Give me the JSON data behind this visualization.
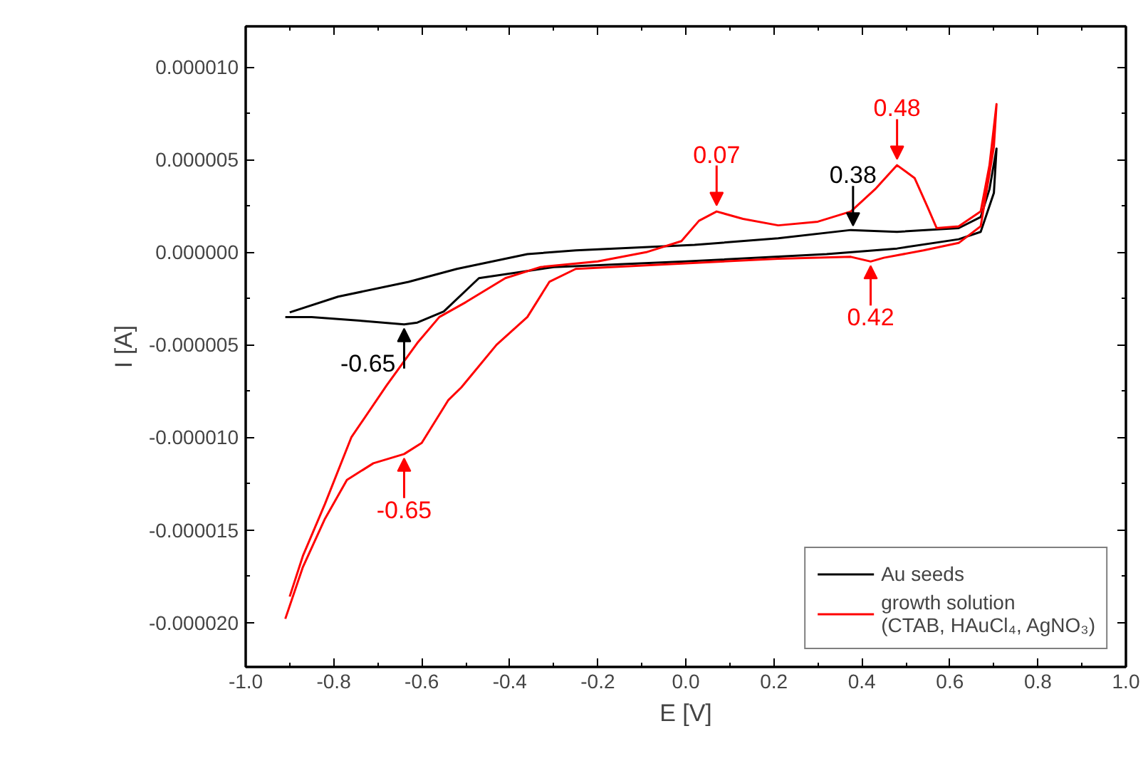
{
  "chart_data": {
    "type": "line",
    "xlabel": "E [V]",
    "ylabel": "I [A]",
    "xlim": [
      -1.0,
      1.0
    ],
    "ylim": [
      -2.24e-05,
      1.22e-05
    ],
    "xticks": [
      {
        "value": -1.0,
        "label": "-1.0"
      },
      {
        "value": -0.8,
        "label": "-0.8"
      },
      {
        "value": -0.6,
        "label": "-0.6"
      },
      {
        "value": -0.4,
        "label": "-0.4"
      },
      {
        "value": -0.2,
        "label": "-0.2"
      },
      {
        "value": 0.0,
        "label": "0.0"
      },
      {
        "value": 0.2,
        "label": "0.2"
      },
      {
        "value": 0.4,
        "label": "0.4"
      },
      {
        "value": 0.6,
        "label": "0.6"
      },
      {
        "value": 0.8,
        "label": "0.8"
      },
      {
        "value": 1.0,
        "label": "1.0"
      }
    ],
    "yticks": [
      {
        "value": -2e-05,
        "label": "-0.000020"
      },
      {
        "value": -1.5e-05,
        "label": "-0.000015"
      },
      {
        "value": -1e-05,
        "label": "-0.000010"
      },
      {
        "value": -5e-06,
        "label": "-0.000005"
      },
      {
        "value": 0,
        "label": "0.000000"
      },
      {
        "value": 5e-06,
        "label": "0.000005"
      },
      {
        "value": 1e-05,
        "label": "0.000010"
      }
    ],
    "grid": false,
    "legend": "bottom right",
    "marker": "none",
    "line_style": "solid",
    "series": [
      {
        "name": "Au seeds",
        "color": "#000000",
        "x": [
          -0.9,
          -0.79,
          -0.63,
          -0.52,
          -0.36,
          -0.25,
          0.02,
          0.21,
          0.375,
          0.48,
          0.62,
          0.67,
          0.69,
          0.706,
          0.7,
          0.67,
          0.62,
          0.48,
          0.32,
          0.0,
          -0.3,
          -0.47,
          -0.55,
          -0.61,
          -0.64,
          -0.74,
          -0.85,
          -0.91
        ],
        "values": [
          -3.25e-06,
          -2.4e-06,
          -1.6e-06,
          -9e-07,
          -1e-07,
          1e-07,
          4e-07,
          7.5e-07,
          1.2e-06,
          1.1e-06,
          1.3e-06,
          1.9e-06,
          3.4e-06,
          5.6e-06,
          3.2e-06,
          1.1e-06,
          7e-07,
          2e-07,
          -1e-07,
          -5e-07,
          -8e-07,
          -1.4e-06,
          -3.2e-06,
          -3.8e-06,
          -3.9e-06,
          -3.7e-06,
          -3.5e-06,
          -3.5e-06
        ]
      },
      {
        "name": "growth solution\n(CTAB, HAuCl₄, AgNO₃)",
        "color": "#ff0000",
        "x": [
          -0.9,
          -0.87,
          -0.82,
          -0.76,
          -0.68,
          -0.61,
          -0.56,
          -0.5,
          -0.41,
          -0.33,
          -0.2,
          -0.09,
          -0.01,
          0.03,
          0.07,
          0.13,
          0.21,
          0.3,
          0.375,
          0.43,
          0.48,
          0.52,
          0.55,
          0.57,
          0.62,
          0.67,
          0.69,
          0.706,
          0.7,
          0.67,
          0.62,
          0.54,
          0.45,
          0.42,
          0.375,
          0.21,
          0.0,
          -0.25,
          -0.31,
          -0.36,
          -0.43,
          -0.51,
          -0.54,
          -0.6,
          -0.64,
          -0.71,
          -0.77,
          -0.82,
          -0.87,
          -0.91
        ],
        "values": [
          -1.86e-05,
          -1.64e-05,
          -1.36e-05,
          -1e-05,
          -7.2e-06,
          -4.9e-06,
          -3.5e-06,
          -2.7e-06,
          -1.4e-06,
          -8e-07,
          -5e-07,
          0.0,
          6e-07,
          1.7e-06,
          2.2e-06,
          1.8e-06,
          1.45e-06,
          1.65e-06,
          2.2e-06,
          3.4e-06,
          4.7e-06,
          4e-06,
          2.4e-06,
          1.3e-06,
          1.4e-06,
          2.2e-06,
          4.7e-06,
          8e-06,
          5.7e-06,
          1.4e-06,
          5e-07,
          1e-07,
          -3e-07,
          -5e-07,
          -2.5e-07,
          -3.5e-07,
          -6e-07,
          -9e-07,
          -1.6e-06,
          -3.5e-06,
          -5e-06,
          -7.3e-06,
          -8e-06,
          -1.03e-05,
          -1.09e-05,
          -1.14e-05,
          -1.23e-05,
          -1.44e-05,
          -1.7e-05,
          -1.98e-05
        ]
      }
    ],
    "annotations": [
      {
        "text": "0.07",
        "x": 0.07,
        "y": 2.3e-06
      },
      {
        "text": "0.48",
        "x": 0.48,
        "y": 4.8e-06
      },
      {
        "text": "0.38",
        "x": 0.38,
        "y": 1.2e-06
      },
      {
        "text": "0.42",
        "x": 0.42,
        "y": -5e-07
      },
      {
        "text": "-0.65",
        "x": -0.64,
        "y": -3.9e-06
      },
      {
        "text": "-0.65",
        "x": -0.64,
        "y": -1.09e-05
      }
    ]
  }
}
